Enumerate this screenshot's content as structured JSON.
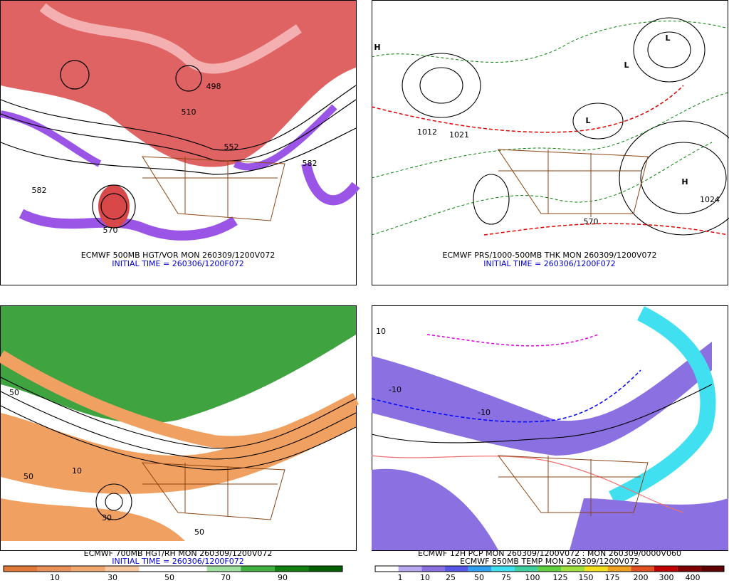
{
  "panels": [
    {
      "caption": "ECMWF 500MB HGT/VOR  MON 260309/1200V072",
      "initial_time": "INITIAL TIME = 260306/1200F072",
      "labels": [
        "498",
        "510",
        "552",
        "582",
        "582",
        "570"
      ]
    },
    {
      "caption": "ECMWF PRS/1000-500MB THK  MON 260309/1200V072",
      "initial_time": "INITIAL TIME = 260306/1200F072",
      "labels": [
        "H",
        "H",
        "L",
        "L",
        "L",
        "1024",
        "1012",
        "1021",
        "570"
      ]
    },
    {
      "caption": "ECMWF 700MB HGT/RH  MON 260309/1200V072",
      "initial_time": "INITIAL TIME = 260306/1200F072",
      "labels": [
        "50",
        "50",
        "10",
        "30",
        "50"
      ]
    },
    {
      "caption": "ECMWF 12H PCP  MON 260309/1200V072 : MON 260309/0000V060",
      "initial_time": "ECMWF 850MB TEMP  MON 260309/1200V072",
      "labels": [
        "10",
        "-10",
        "-10"
      ]
    }
  ],
  "colorbars": [
    {
      "labels": [
        "10",
        "30",
        "50",
        "70",
        "90"
      ]
    },
    {
      "labels": [
        "1",
        "10",
        "25",
        "50",
        "75",
        "100",
        "125",
        "150",
        "175",
        "200",
        "300",
        "400"
      ]
    }
  ]
}
